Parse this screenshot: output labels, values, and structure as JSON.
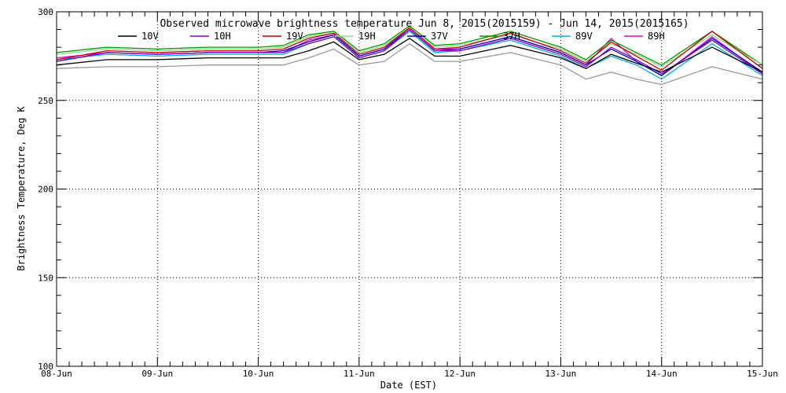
{
  "chart_data": {
    "type": "line",
    "title": "Observed microwave brightness temperature Jun  8, 2015(2015159) - Jun 14, 2015(2015165)",
    "xlabel": "Date (EST)",
    "ylabel": "Brightness Temperature, Deg K",
    "x_unit": "days",
    "xlim": [
      "2015-06-08",
      "2015-06-15"
    ],
    "ylim": [
      100,
      300
    ],
    "x_ticks": [
      "08-Jun",
      "09-Jun",
      "10-Jun",
      "11-Jun",
      "12-Jun",
      "13-Jun",
      "14-Jun",
      "15-Jun"
    ],
    "y_ticks": [
      100,
      150,
      200,
      250,
      300
    ],
    "grid": true,
    "legend_position": "top",
    "x": [
      "2015-06-08 00:00",
      "2015-06-08 12:00",
      "2015-06-09 00:00",
      "2015-06-09 12:00",
      "2015-06-10 00:00",
      "2015-06-10 06:00",
      "2015-06-10 12:00",
      "2015-06-10 18:00",
      "2015-06-11 00:00",
      "2015-06-11 06:00",
      "2015-06-11 12:00",
      "2015-06-11 18:00",
      "2015-06-12 00:00",
      "2015-06-12 12:00",
      "2015-06-13 00:00",
      "2015-06-13 06:00",
      "2015-06-13 12:00",
      "2015-06-13 18:00",
      "2015-06-14 00:00",
      "2015-06-14 12:00",
      "2015-06-15 00:00"
    ],
    "series": [
      {
        "name": "10V",
        "color": "#000000",
        "values": [
          270,
          273,
          273,
          274,
          274,
          274,
          278,
          283,
          273,
          276,
          285,
          275,
          275,
          281,
          274,
          268,
          276,
          271,
          266,
          280,
          266
        ]
      },
      {
        "name": "10H",
        "color": "#8800cc",
        "values": [
          272,
          277,
          276,
          277,
          277,
          277,
          282,
          286,
          274,
          278,
          290,
          278,
          278,
          285,
          276,
          269,
          280,
          273,
          265,
          284,
          265
        ]
      },
      {
        "name": "19V",
        "color": "#cc0000",
        "values": [
          273,
          278,
          277,
          278,
          278,
          279,
          285,
          288,
          276,
          280,
          291,
          279,
          280,
          288,
          278,
          271,
          283,
          275,
          267,
          289,
          268
        ]
      },
      {
        "name": "19H",
        "color": "#88dd88",
        "values": [
          276,
          279,
          278,
          279,
          279,
          280,
          286,
          288,
          277,
          281,
          291,
          280,
          281,
          287,
          279,
          272,
          282,
          276,
          269,
          287,
          270
        ]
      },
      {
        "name": "37V",
        "color": "#0000cc",
        "values": [
          272,
          277,
          276,
          277,
          277,
          278,
          283,
          287,
          275,
          279,
          290,
          278,
          279,
          286,
          277,
          270,
          279,
          272,
          264,
          285,
          266
        ]
      },
      {
        "name": "37H",
        "color": "#009900",
        "values": [
          277,
          280,
          279,
          280,
          280,
          281,
          287,
          289,
          278,
          282,
          292,
          281,
          282,
          289,
          280,
          273,
          284,
          277,
          270,
          289,
          270
        ]
      },
      {
        "name": "89V",
        "color": "#00aaee",
        "values": [
          273,
          276,
          275,
          276,
          276,
          276,
          282,
          286,
          274,
          278,
          289,
          277,
          278,
          284,
          275,
          268,
          275,
          270,
          262,
          282,
          264
        ]
      },
      {
        "name": "89H",
        "color": "#dd00cc",
        "values": [
          274,
          277,
          276,
          277,
          277,
          277,
          284,
          287,
          275,
          279,
          291,
          279,
          279,
          286,
          277,
          270,
          285,
          272,
          264,
          286,
          265
        ]
      },
      {
        "name": "",
        "color": "#999999",
        "values": [
          268,
          269,
          269,
          270,
          270,
          270,
          274,
          279,
          270,
          272,
          282,
          272,
          272,
          277,
          270,
          262,
          266,
          262,
          259,
          269,
          262
        ]
      }
    ]
  }
}
